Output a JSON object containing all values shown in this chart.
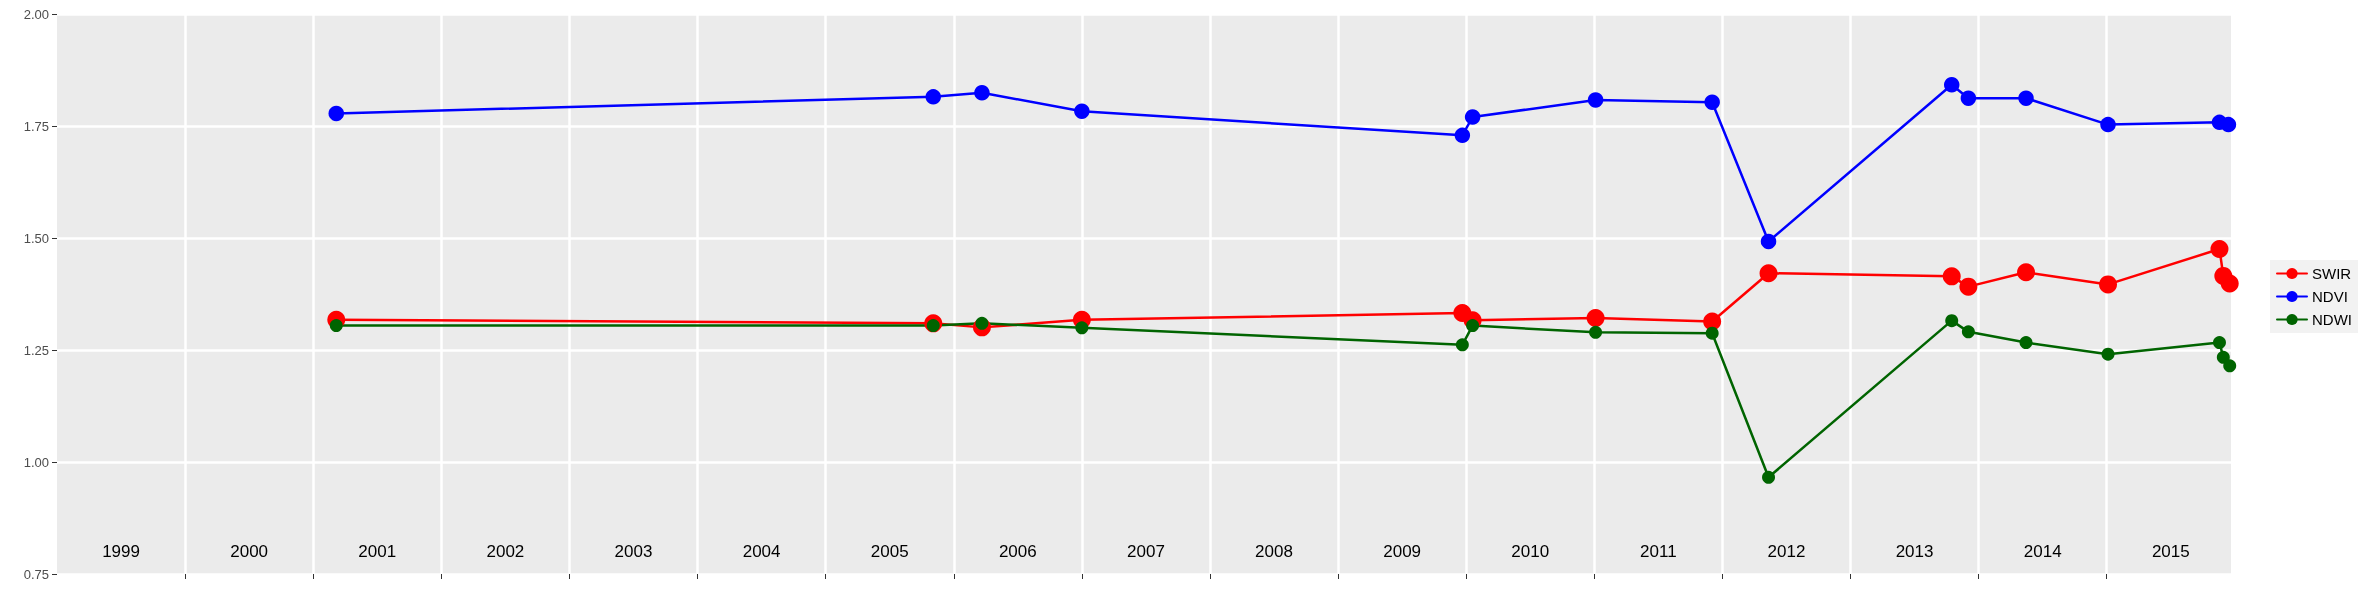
{
  "chart_data": {
    "type": "line",
    "xlim": [
      1999,
      2015.97
    ],
    "xticks": [
      {
        "value": 2000,
        "label": null
      },
      {
        "value": 2001,
        "label": null
      },
      {
        "value": 2002,
        "label": null
      },
      {
        "value": 2003,
        "label": null
      },
      {
        "value": 2004,
        "label": null
      },
      {
        "value": 2005,
        "label": null
      },
      {
        "value": 2006,
        "label": null
      },
      {
        "value": 2007,
        "label": null
      },
      {
        "value": 2008,
        "label": null
      },
      {
        "value": 2009,
        "label": null
      },
      {
        "value": 2010,
        "label": null
      },
      {
        "value": 2011,
        "label": null
      },
      {
        "value": 2012,
        "label": null
      },
      {
        "value": 2013,
        "label": null
      },
      {
        "value": 2014,
        "label": null
      },
      {
        "value": 2015,
        "label": null
      },
      {
        "value": 1999.5,
        "label": "1999"
      },
      {
        "value": 2000.5,
        "label": "2000"
      },
      {
        "value": 2001.5,
        "label": "2001"
      },
      {
        "value": 2002.5,
        "label": "2002"
      },
      {
        "value": 2003.5,
        "label": "2003"
      },
      {
        "value": 2004.5,
        "label": "2004"
      },
      {
        "value": 2005.5,
        "label": "2005"
      },
      {
        "value": 2006.5,
        "label": "2006"
      },
      {
        "value": 2007.5,
        "label": "2007"
      },
      {
        "value": 2008.5,
        "label": "2008"
      },
      {
        "value": 2009.5,
        "label": "2009"
      },
      {
        "value": 2010.5,
        "label": "2010"
      },
      {
        "value": 2011.5,
        "label": "2011"
      },
      {
        "value": 2012.5,
        "label": "2012"
      },
      {
        "value": 2013.5,
        "label": "2013"
      },
      {
        "value": 2014.5,
        "label": "2014"
      },
      {
        "value": 2015.5,
        "label": "2015"
      }
    ],
    "ylim": [
      0.75,
      2.0
    ],
    "yticks": [
      {
        "value": 0.75,
        "label": "0.75"
      },
      {
        "value": 1.0,
        "label": "1.00"
      },
      {
        "value": 1.25,
        "label": "1.25"
      },
      {
        "value": 1.5,
        "label": "1.50"
      },
      {
        "value": 1.75,
        "label": "1.75"
      },
      {
        "value": 2.0,
        "label": "2.00"
      }
    ],
    "grid": true,
    "legend": "right",
    "marker": "circle",
    "line_style": "solid",
    "series": [
      {
        "name": "SWIR",
        "color": "#ff0000",
        "x": [
          2001.18,
          2005.84,
          2006.22,
          2007.0,
          2009.97,
          2010.05,
          2011.01,
          2011.92,
          2012.36,
          2013.79,
          2013.92,
          2014.37,
          2015.01,
          2015.88,
          2015.91,
          2015.96
        ],
        "values": [
          1.318,
          1.31,
          1.301,
          1.318,
          1.333,
          1.317,
          1.322,
          1.314,
          1.422,
          1.415,
          1.392,
          1.424,
          1.397,
          1.476,
          1.416,
          1.399
        ]
      },
      {
        "name": "NDVI",
        "color": "#0000ff",
        "x": [
          2001.18,
          2005.84,
          2006.22,
          2007.0,
          2009.97,
          2010.05,
          2011.01,
          2011.92,
          2012.36,
          2013.79,
          2013.92,
          2014.37,
          2015.01,
          2015.88,
          2015.95
        ],
        "values": [
          1.779,
          1.816,
          1.825,
          1.784,
          1.73,
          1.771,
          1.809,
          1.804,
          1.493,
          1.843,
          1.813,
          1.813,
          1.754,
          1.759,
          1.754
        ]
      },
      {
        "name": "NDWI",
        "color": "#006400",
        "x": [
          2001.18,
          2005.84,
          2006.22,
          2007.0,
          2009.97,
          2010.05,
          2011.01,
          2011.92,
          2012.36,
          2013.79,
          2013.92,
          2014.37,
          2015.01,
          2015.88,
          2015.91,
          2015.96
        ],
        "values": [
          1.305,
          1.305,
          1.31,
          1.3,
          1.262,
          1.305,
          1.29,
          1.288,
          0.966,
          1.316,
          1.291,
          1.267,
          1.241,
          1.267,
          1.234,
          1.215
        ]
      }
    ]
  }
}
